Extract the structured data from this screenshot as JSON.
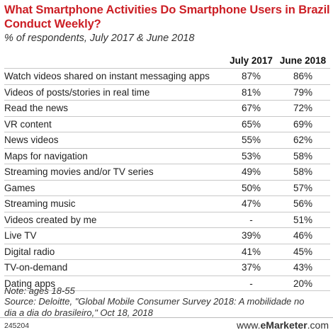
{
  "chart_data": {
    "type": "table",
    "title": "What Smartphone Activities Do Smartphone Users in Brazil Conduct Weekly?",
    "subtitle": "% of respondents, July 2017 & June 2018",
    "columns": [
      "July 2017",
      "June 2018"
    ],
    "rows": [
      {
        "label": "Watch videos shared on instant messaging apps",
        "values": [
          "87%",
          "86%"
        ]
      },
      {
        "label": "Videos of posts/stories in real time",
        "values": [
          "81%",
          "79%"
        ]
      },
      {
        "label": "Read the news",
        "values": [
          "67%",
          "72%"
        ]
      },
      {
        "label": "VR content",
        "values": [
          "65%",
          "69%"
        ]
      },
      {
        "label": "News videos",
        "values": [
          "55%",
          "62%"
        ]
      },
      {
        "label": "Maps for navigation",
        "values": [
          "53%",
          "58%"
        ]
      },
      {
        "label": "Streaming movies and/or TV series",
        "values": [
          "49%",
          "58%"
        ]
      },
      {
        "label": "Games",
        "values": [
          "50%",
          "57%"
        ]
      },
      {
        "label": "Streaming music",
        "values": [
          "47%",
          "56%"
        ]
      },
      {
        "label": "Videos created by me",
        "values": [
          "-",
          "51%"
        ]
      },
      {
        "label": "Live TV",
        "values": [
          "39%",
          "46%"
        ]
      },
      {
        "label": "Digital radio",
        "values": [
          "41%",
          "45%"
        ]
      },
      {
        "label": "TV-on-demand",
        "values": [
          "37%",
          "43%"
        ]
      },
      {
        "label": "Dating apps",
        "values": [
          "-",
          "20%"
        ]
      }
    ]
  },
  "notes": {
    "note": "Note: ages 18-55",
    "source": "Source: Deloitte, \"Global Mobile Consumer Survey 2018: A mobilidade no dia a dia do brasileiro,\" Oct 18, 2018"
  },
  "footer": {
    "chart_id": "245204",
    "brand_prefix": "www.",
    "brand_name": "eMarketer",
    "brand_suffix": ".com"
  }
}
